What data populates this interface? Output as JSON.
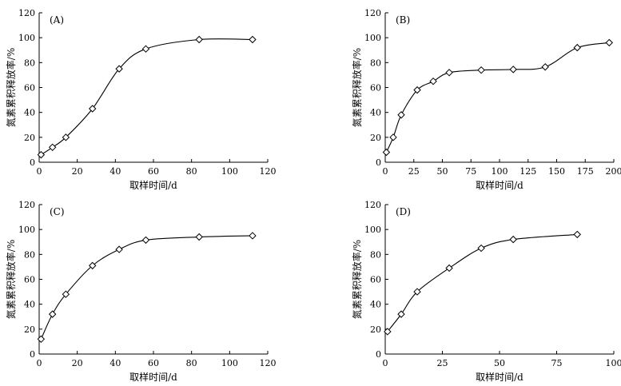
{
  "chart_data": [
    {
      "type": "line",
      "panel_label": "(A)",
      "xlabel": "取样时间/d",
      "ylabel": "氮素累积释放率/%",
      "xlim": [
        0,
        120
      ],
      "ylim": [
        0,
        120
      ],
      "xticks": [
        0,
        20,
        40,
        60,
        80,
        100,
        120
      ],
      "yticks": [
        0,
        20,
        40,
        60,
        80,
        100,
        120
      ],
      "series": [
        {
          "values": [
            {
              "x": 1,
              "y": 6
            },
            {
              "x": 7,
              "y": 12
            },
            {
              "x": 14,
              "y": 20
            },
            {
              "x": 28,
              "y": 43
            },
            {
              "x": 42,
              "y": 75
            },
            {
              "x": 56,
              "y": 91
            },
            {
              "x": 84,
              "y": 98.5
            },
            {
              "x": 112,
              "y": 98.5
            }
          ]
        }
      ]
    },
    {
      "type": "line",
      "panel_label": "(B)",
      "xlabel": "取样时间/d",
      "ylabel": "氮素累积释放率/%",
      "xlim": [
        0,
        200
      ],
      "ylim": [
        0,
        120
      ],
      "xticks": [
        0,
        25,
        50,
        75,
        100,
        125,
        150,
        175,
        200
      ],
      "yticks": [
        0,
        20,
        40,
        60,
        80,
        100,
        120
      ],
      "series": [
        {
          "values": [
            {
              "x": 1,
              "y": 8
            },
            {
              "x": 7,
              "y": 20
            },
            {
              "x": 14,
              "y": 38
            },
            {
              "x": 28,
              "y": 58
            },
            {
              "x": 42,
              "y": 65
            },
            {
              "x": 56,
              "y": 72
            },
            {
              "x": 84,
              "y": 74
            },
            {
              "x": 112,
              "y": 74.5
            },
            {
              "x": 140,
              "y": 76.5
            },
            {
              "x": 168,
              "y": 92
            },
            {
              "x": 196,
              "y": 96
            }
          ]
        }
      ]
    },
    {
      "type": "line",
      "panel_label": "(C)",
      "xlabel": "取样时间/d",
      "ylabel": "氮素累积释放率/%",
      "xlim": [
        0,
        120
      ],
      "ylim": [
        0,
        120
      ],
      "xticks": [
        0,
        20,
        40,
        60,
        80,
        100,
        120
      ],
      "yticks": [
        0,
        20,
        40,
        60,
        80,
        100,
        120
      ],
      "series": [
        {
          "values": [
            {
              "x": 1,
              "y": 12
            },
            {
              "x": 7,
              "y": 32
            },
            {
              "x": 14,
              "y": 48
            },
            {
              "x": 28,
              "y": 71
            },
            {
              "x": 42,
              "y": 84
            },
            {
              "x": 56,
              "y": 91.5
            },
            {
              "x": 84,
              "y": 94
            },
            {
              "x": 112,
              "y": 95
            }
          ]
        }
      ]
    },
    {
      "type": "line",
      "panel_label": "(D)",
      "xlabel": "取样时间/d",
      "ylabel": "氮素累积释放率/%",
      "xlim": [
        0,
        100
      ],
      "ylim": [
        0,
        120
      ],
      "xticks": [
        0,
        25,
        50,
        75,
        100
      ],
      "yticks": [
        0,
        20,
        40,
        60,
        80,
        100,
        120
      ],
      "series": [
        {
          "values": [
            {
              "x": 1,
              "y": 18
            },
            {
              "x": 7,
              "y": 32
            },
            {
              "x": 14,
              "y": 50
            },
            {
              "x": 28,
              "y": 69
            },
            {
              "x": 42,
              "y": 85
            },
            {
              "x": 56,
              "y": 92
            },
            {
              "x": 84,
              "y": 96
            }
          ]
        }
      ]
    }
  ]
}
